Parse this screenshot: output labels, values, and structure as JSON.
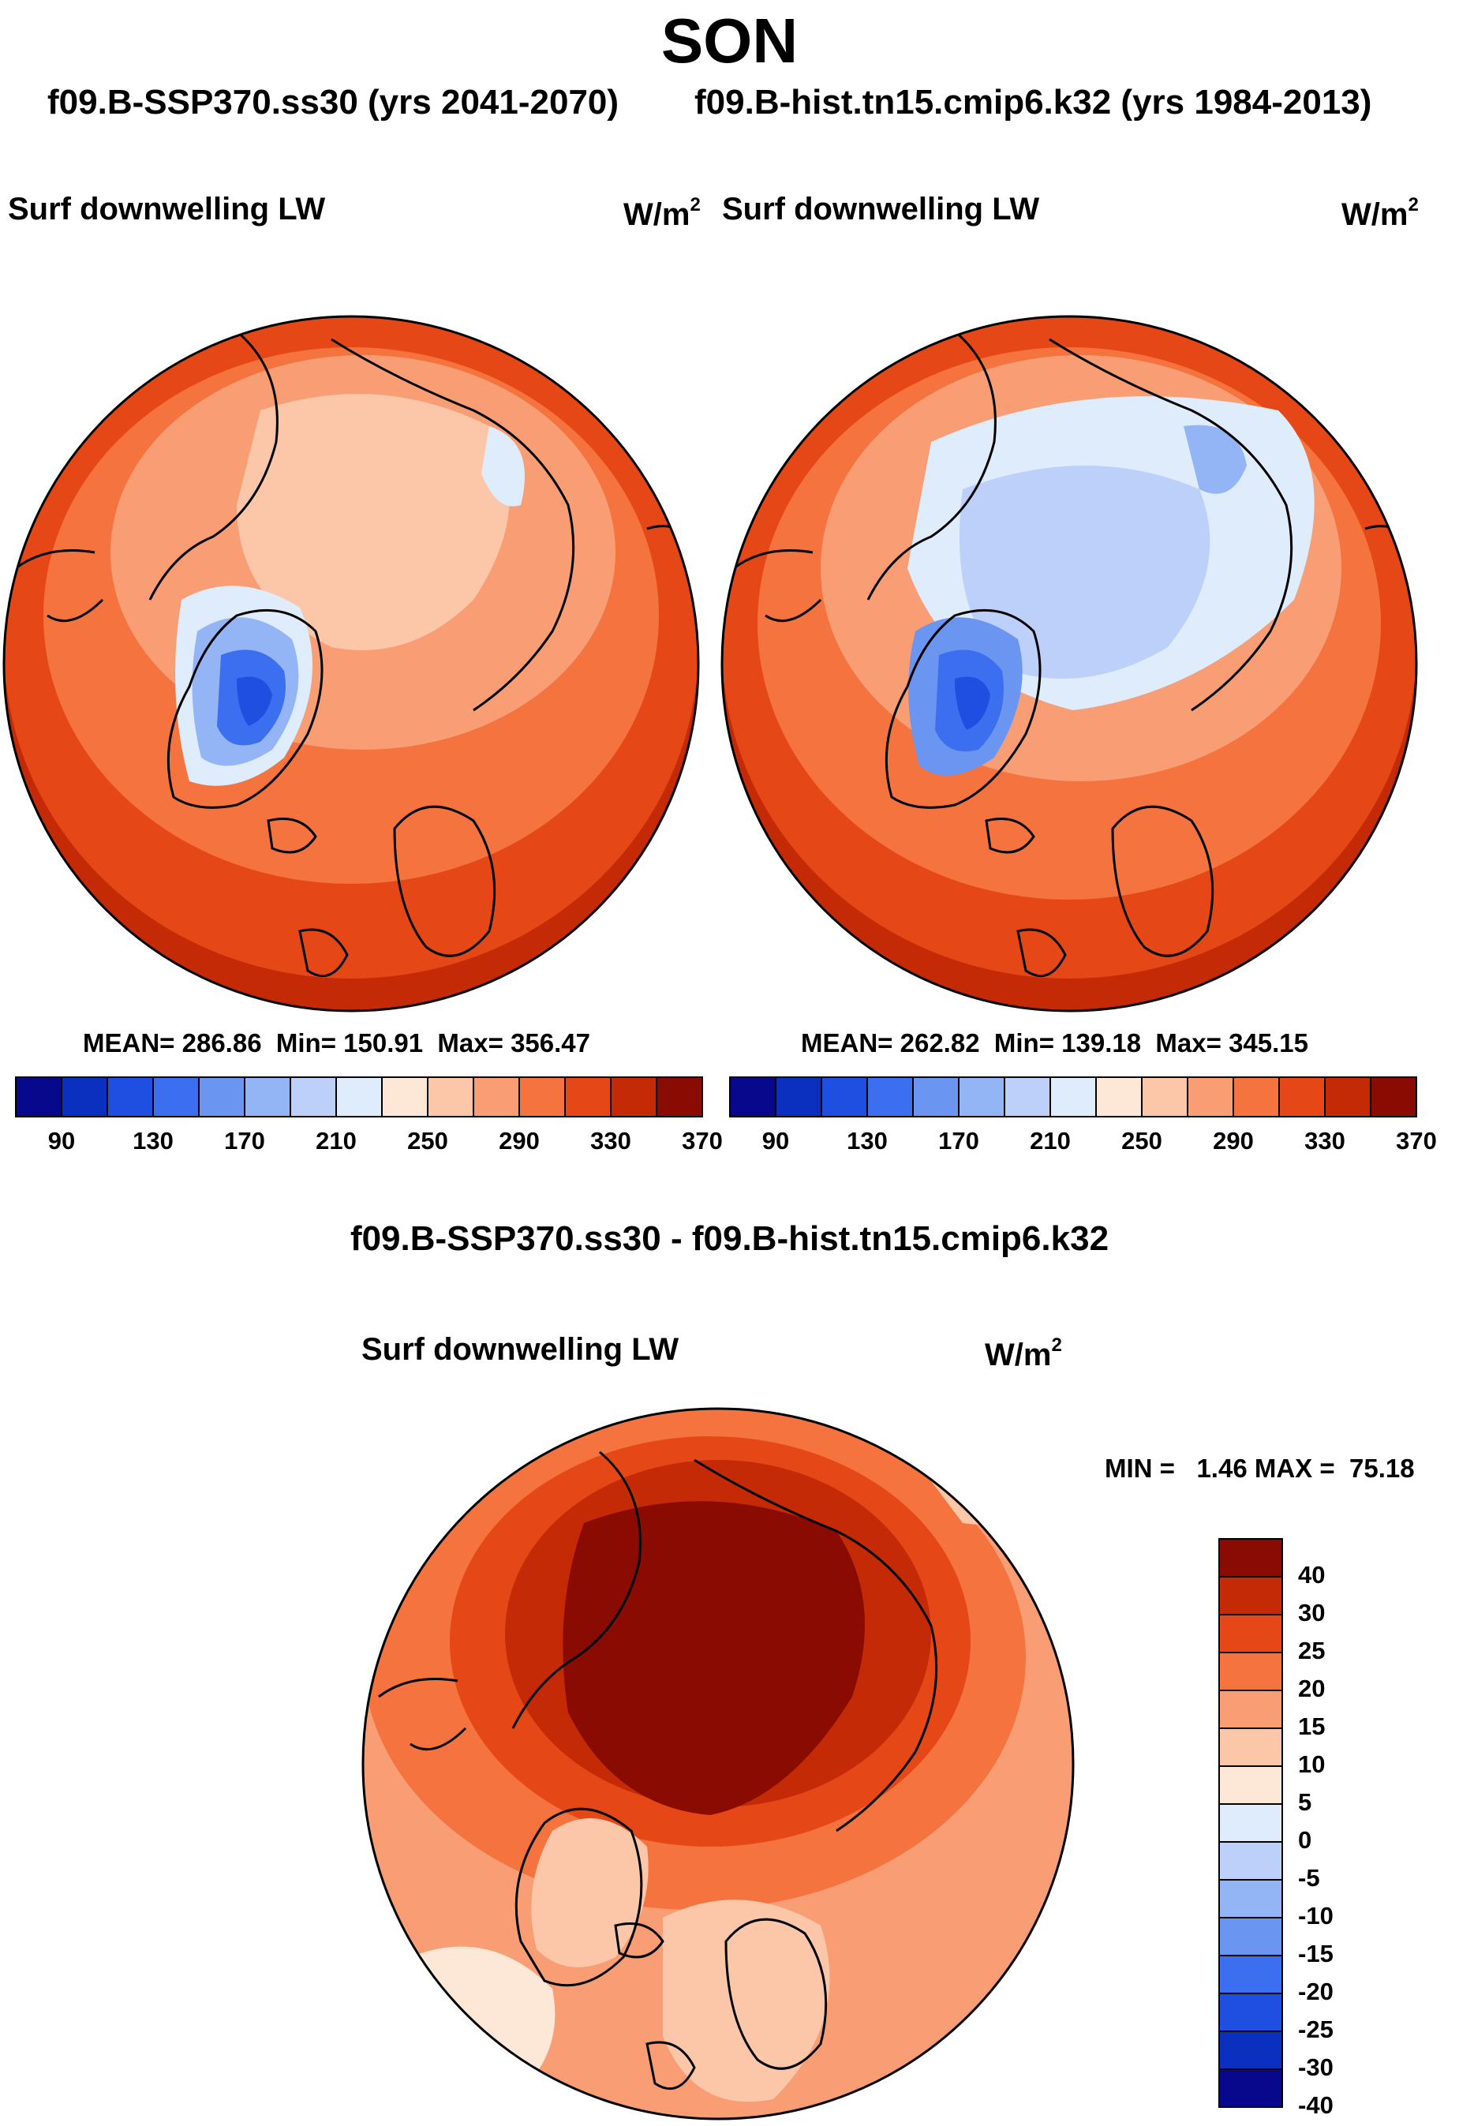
{
  "title": "SON",
  "subtitle_left": "f09.B-SSP370.ss30 (yrs 2041-2070)",
  "subtitle_right": "f09.B-hist.tn15.cmip6.k32 (yrs 1984-2013)",
  "panels": [
    {
      "variable": "Surf downwelling LW",
      "units": "W/m",
      "units_exp": "2",
      "stats": {
        "mean": "286.86",
        "min": "150.91",
        "max": "356.47"
      }
    },
    {
      "variable": "Surf downwelling LW",
      "units": "W/m",
      "units_exp": "2",
      "stats": {
        "mean": "262.82",
        "min": "139.18",
        "max": "345.15"
      }
    }
  ],
  "diff_panel": {
    "title": "f09.B-SSP370.ss30 - f09.B-hist.tn15.cmip6.k32",
    "variable": "Surf downwelling LW",
    "units": "W/m",
    "units_exp": "2",
    "min_label": "MIN =",
    "min_value": "1.46",
    "max_label": "MAX =",
    "max_value": "75.18"
  },
  "colorbar_abs": {
    "colors": [
      "#08088c",
      "#0b2fbe",
      "#1f4fe0",
      "#3b6ff0",
      "#6a96f2",
      "#94b5f5",
      "#bcd0fa",
      "#deecfc",
      "#fde8d8",
      "#fcc7a8",
      "#f99e74",
      "#f4733e",
      "#e64716",
      "#c42a06",
      "#8a0b02"
    ],
    "labels": [
      "90",
      "130",
      "170",
      "210",
      "250",
      "290",
      "330",
      "370"
    ]
  },
  "colorbar_diff": {
    "colors": [
      "#08088c",
      "#0b2fbe",
      "#1f4fe0",
      "#3b6ff0",
      "#6a96f2",
      "#94b5f5",
      "#bcd0fa",
      "#deecfc",
      "#fde8d8",
      "#fcc7a8",
      "#f99e74",
      "#f4733e",
      "#e64716",
      "#c42a06",
      "#8a0b02"
    ],
    "labels": [
      "-40",
      "-30",
      "-25",
      "-20",
      "-15",
      "-10",
      "-5",
      "0",
      "5",
      "10",
      "15",
      "20",
      "25",
      "30",
      "40"
    ]
  },
  "map_colors": {
    "abs_left": {
      "outer": "#e64716",
      "mid": "#f4733e",
      "inner": "#f99e74",
      "cap": "#fcc7a8",
      "ice1": "#94b5f5",
      "ice2": "#3b6ff0",
      "ice3": "#1f4fe0",
      "rim": "#deecfc",
      "warm_edge": "#c42a06"
    },
    "abs_right": {
      "outer": "#e64716",
      "mid": "#f4733e",
      "inner": "#f99e74",
      "cap": "#bcd0fa",
      "cap2": "#94b5f5",
      "ice1": "#6a96f2",
      "ice2": "#3b6ff0",
      "ice3": "#1f4fe0",
      "rim": "#deecfc",
      "warm_edge": "#c42a06"
    },
    "diff": {
      "outer": "#f99e74",
      "mid": "#f4733e",
      "ring": "#e64716",
      "ring2": "#c42a06",
      "core": "#8a0b02",
      "land": "#fcc7a8",
      "pale": "#fde8d8"
    }
  }
}
